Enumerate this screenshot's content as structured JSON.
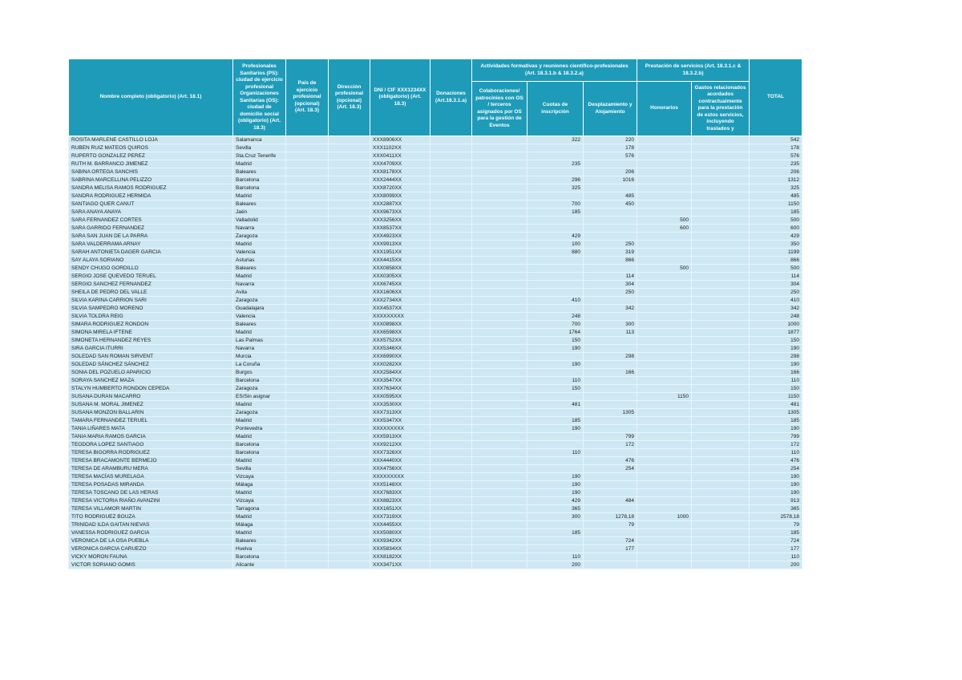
{
  "document": {
    "type": "transparency-disclosure-table",
    "language": "es"
  },
  "colors": {
    "header_bg": "#1e9bb9",
    "header_text": "#ffffff",
    "row_bg": "#cde8f3",
    "grid_line": "#e9f4fa",
    "body_text": "#1a1a1a",
    "page_bg": "#ffffff"
  },
  "table": {
    "header": {
      "nombre": "Nombre completo (obligatorio) (Art. 18.1)",
      "ciudad": "Profesionales Sanitarios (PS): ciudad de ejercicio profesional Organizaciones Sanitarias (OS): ciudad de domicilio social (obligatorio) (Art. 18.3)",
      "pais": "País de ejercicio profesional (opcional) (Art. 18.3)",
      "direccion": "Dirección profesional (opcional) (Art. 18.3)",
      "dni": "DNI / CIF XXX1234XX (obligatorio) (Art. 18.3)",
      "donaciones": "Donaciones (Art.18.3.1.a)",
      "grupo_actividades": "Actividades formativas y reuniones científico-profesionales (Art. 18.3.1.b & 18.3.2.a)",
      "colaboraciones": "Colaboraciones/ patrocinios con OS / terceros asignados por OS para la gestión de Eventos",
      "cuotas": "Cuotas de inscripción",
      "desplazamiento": "Desplazamiento y Alojamiento",
      "grupo_prestacion": "Prestación de servicios (Art. 18.3.1.c & 18.3.2.b)",
      "honorarios": "Honorarios",
      "gastos": "Gastos relacionados acordados contractualmente para la prestación de estos servicios, incluyendo traslados y",
      "total": "TOTAL"
    },
    "rows": [
      {
        "name": "ROSITA MARLENE CASTILLO LOJA",
        "city": "Salamanca",
        "dni": "XXX8906XX",
        "cuotas": "322",
        "desplazamiento": "220",
        "total": "542"
      },
      {
        "name": "RUBEN RUIZ MATEOS QUIROS",
        "city": "Sevilla",
        "dni": "XXX1102XX",
        "desplazamiento": "178",
        "total": "178"
      },
      {
        "name": "RUPERTO GONZALEZ PEREZ",
        "city": "Sta.Cruz Tenerife",
        "dni": "XXX0411XX",
        "desplazamiento": "576",
        "total": "576"
      },
      {
        "name": "RUTH M. BARRANCO JIMENEZ",
        "city": "Madrid",
        "dni": "XXX4709XX",
        "cuotas": "235",
        "total": "235"
      },
      {
        "name": "SABINA ORTEGA SANCHIS",
        "city": "Baleares",
        "dni": "XXX8178XX",
        "desplazamiento": "206",
        "total": "206"
      },
      {
        "name": "SABRINA MARCELLINA PELIZZO",
        "city": "Barcelona",
        "dni": "XXX2444XX",
        "cuotas": "296",
        "desplazamiento": "1016",
        "total": "1312"
      },
      {
        "name": "SANDRA MELISA RAMOS RODRIGUEZ",
        "city": "Barcelona",
        "dni": "XXX8720XX",
        "cuotas": "325",
        "total": "325"
      },
      {
        "name": "SANDRA RODRIGUEZ HERMIDA",
        "city": "Madrid",
        "dni": "XXX8099XX",
        "desplazamiento": "485",
        "total": "485"
      },
      {
        "name": "SANTIAGO QUER CANUT",
        "city": "Baleares",
        "dni": "XXX2887XX",
        "cuotas": "700",
        "desplazamiento": "450",
        "total": "1150"
      },
      {
        "name": "SARA ANAYA ANAYA",
        "city": "Jaén",
        "dni": "XXX9673XX",
        "cuotas": "185",
        "total": "185"
      },
      {
        "name": "SARA FERNANDEZ CORTES",
        "city": "Valladolid",
        "dni": "XXX3256XX",
        "honorarios": "500",
        "total": "500"
      },
      {
        "name": "SARA GARRIDO FERNANDEZ",
        "city": "Navarra",
        "dni": "XXX8537XX",
        "honorarios": "600",
        "total": "600"
      },
      {
        "name": "SARA SAN JUAN DE LA PARRA",
        "city": "Zaragoza",
        "dni": "XXX4923XX",
        "cuotas": "429",
        "total": "429"
      },
      {
        "name": "SARA VALDERRAMA ARNAY",
        "city": "Madrid",
        "dni": "XXX9913XX",
        "cuotas": "100",
        "desplazamiento": "250",
        "total": "350"
      },
      {
        "name": "SARAH ANTONIETA DAGER GARCIA",
        "city": "Valencia",
        "dni": "XXX1951XX",
        "cuotas": "880",
        "desplazamiento": "319",
        "total": "1199"
      },
      {
        "name": "SAY ALAYA SORIANO",
        "city": "Asturias",
        "dni": "XXX4415XX",
        "desplazamiento": "866",
        "total": "866"
      },
      {
        "name": "SENDY CHUGO GORDILLO",
        "city": "Baleares",
        "dni": "XXX0858XX",
        "honorarios": "500",
        "total": "500"
      },
      {
        "name": "SERGIO JOSE QUEVEDO TERUEL",
        "city": "Madrid",
        "dni": "XXX0305XX",
        "desplazamiento": "114",
        "total": "114"
      },
      {
        "name": "SERGIO SANCHEZ FERNANDEZ",
        "city": "Navarra",
        "dni": "XXX6745XX",
        "desplazamiento": "304",
        "total": "304"
      },
      {
        "name": "SHEILA DE PEDRO DEL VALLE",
        "city": "Avila",
        "dni": "XXX1606XX",
        "desplazamiento": "250",
        "total": "250"
      },
      {
        "name": "SILVIA KARINA CARRION SARI",
        "city": "Zaragoza",
        "dni": "XXX2734XX",
        "cuotas": "410",
        "total": "410"
      },
      {
        "name": "SILVIA SAMPEDRO MORENO",
        "city": "Guadalajara",
        "dni": "XXX4537XX",
        "desplazamiento": "342",
        "total": "342"
      },
      {
        "name": "SILVIA TOLDRA REIG",
        "city": "Valencia",
        "dni": "XXXXXXXXX",
        "cuotas": "248",
        "total": "248"
      },
      {
        "name": "SIMARA RODRIGUEZ RONDON",
        "city": "Baleares",
        "dni": "XXX0898XX",
        "cuotas": "700",
        "desplazamiento": "300",
        "total": "1000"
      },
      {
        "name": "SIMONA MIRELA IFTENE",
        "city": "Madrid",
        "dni": "XXX6598XX",
        "cuotas": "1764",
        "desplazamiento": "113",
        "total": "1877"
      },
      {
        "name": "SIMONETA HERNANDEZ REYES",
        "city": "Las Palmas",
        "dni": "XXX5752XX",
        "cuotas": "150",
        "total": "150"
      },
      {
        "name": "SIRA GARCIA ITURRI",
        "city": "Navarra",
        "dni": "XXX5346XX",
        "cuotas": "190",
        "total": "190"
      },
      {
        "name": "SOLEDAD SAN ROMAN SIRVENT",
        "city": "Murcia",
        "dni": "XXX6990XX",
        "desplazamiento": "298",
        "total": "298"
      },
      {
        "name": "SOLEDAD SÁNCHEZ SÁNCHEZ",
        "city": "La Coruña",
        "dni": "XXX0282XX",
        "cuotas": "190",
        "total": "190"
      },
      {
        "name": "SONIA DEL POZUELO APARICIO",
        "city": "Burgos",
        "dni": "XXX2584XX",
        "desplazamiento": "166",
        "total": "166"
      },
      {
        "name": "SORAYA SANCHEZ MAZA",
        "city": "Barcelona",
        "dni": "XXX3547XX",
        "cuotas": "110",
        "total": "110"
      },
      {
        "name": "STALYN HUMBERTO RONDON CEPEDA",
        "city": "Zaragoza",
        "dni": "XXX7634XX",
        "cuotas": "150",
        "total": "150"
      },
      {
        "name": "SUSANA DURAN MACARRO",
        "city": "ES/Sin asignar",
        "dni": "XXX0595XX",
        "honorarios": "1150",
        "total": "1150"
      },
      {
        "name": "SUSANA M. MORAL JIMENEZ",
        "city": "Madrid",
        "dni": "XXX3530XX",
        "cuotas": "481",
        "total": "481"
      },
      {
        "name": "SUSANA MONZON BALLARIN",
        "city": "Zaragoza",
        "dni": "XXX7313XX",
        "desplazamiento": "1305",
        "total": "1305"
      },
      {
        "name": "TAMARA FERNANDEZ TERUEL",
        "city": "Madrid",
        "dni": "XXX5347XX",
        "cuotas": "185",
        "total": "185"
      },
      {
        "name": "TANIA LIÑARES MATA",
        "city": "Pontevedra",
        "dni": "XXXXXXXXX",
        "cuotas": "190",
        "total": "190"
      },
      {
        "name": "TANIA MARIA RAMOS GARCIA",
        "city": "Madrid",
        "dni": "XXX5913XX",
        "desplazamiento": "799",
        "total": "799"
      },
      {
        "name": "TEODORA LOPEZ SANTIAGO",
        "city": "Barcelona",
        "dni": "XXX9212XX",
        "desplazamiento": "172",
        "total": "172"
      },
      {
        "name": "TERESA BIGORRA RODRIGUEZ",
        "city": "Barcelona",
        "dni": "XXX7326XX",
        "cuotas": "110",
        "total": "110"
      },
      {
        "name": "TERESA BRACAMONTE BERMEJO",
        "city": "Madrid",
        "dni": "XXX4440XX",
        "desplazamiento": "476",
        "total": "476"
      },
      {
        "name": "TERESA DE ARAMBURU MERA",
        "city": "Sevilla",
        "dni": "XXX4756XX",
        "desplazamiento": "254",
        "total": "254"
      },
      {
        "name": "TERESA MACÍAS MURELAGA",
        "city": "Vizcaya",
        "dni": "XXXXXXXXX",
        "cuotas": "190",
        "total": "190"
      },
      {
        "name": "TERESA POSADAS MIRANDA",
        "city": "Málaga",
        "dni": "XXX5148XX",
        "cuotas": "190",
        "total": "190"
      },
      {
        "name": "TERESA TOSCANO DE LAS HERAS",
        "city": "Madrid",
        "dni": "XXX7683XX",
        "cuotas": "190",
        "total": "190"
      },
      {
        "name": "TERESA VICTORIA RIAÑO AVANZINI",
        "city": "Vizcaya",
        "dni": "XXX8823XX",
        "cuotas": "429",
        "desplazamiento": "484",
        "total": "913"
      },
      {
        "name": "TERESA VILLAMOR MARTIN",
        "city": "Tarragona",
        "dni": "XXX1651XX",
        "cuotas": "365",
        "total": "365"
      },
      {
        "name": "TITO RODRIGUEZ BOUZA",
        "city": "Madrid",
        "dni": "XXX7319XX",
        "cuotas": "300",
        "desplazamiento": "1278,18",
        "honorarios": "1000",
        "total": "2578,18"
      },
      {
        "name": "TRINIDAD ILDA GAITAN NIEVAS",
        "city": "Málaga",
        "dni": "XXX4455XX",
        "desplazamiento": "79",
        "total": "79"
      },
      {
        "name": "VANESSA RODRIGUEZ GARCIA",
        "city": "Madrid",
        "dni": "XXX5080XX",
        "cuotas": "185",
        "total": "185"
      },
      {
        "name": "VERONICA DE LA OSA PUEBLA",
        "city": "Baleares",
        "dni": "XXX9342XX",
        "desplazamiento": "724",
        "total": "724"
      },
      {
        "name": "VERONICA GARCIA CARUEZO",
        "city": "Huelva",
        "dni": "XXX5834XX",
        "desplazamiento": "177",
        "total": "177"
      },
      {
        "name": "VICKY MORON FAUNA",
        "city": "Barcelona",
        "dni": "XXX8182XX",
        "cuotas": "110",
        "total": "110"
      },
      {
        "name": "VICTOR SORIANO GOMIS",
        "city": "Alicante",
        "dni": "XXX3471XX",
        "cuotas": "200",
        "total": "200"
      }
    ]
  }
}
